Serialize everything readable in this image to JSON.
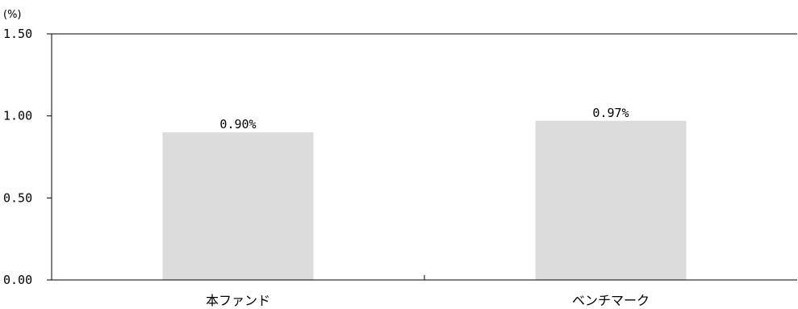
{
  "chart_data": {
    "type": "bar",
    "unit_label": "(%)",
    "categories": [
      "本ファンド",
      "ベンチマーク"
    ],
    "values": [
      0.9,
      0.97
    ],
    "data_labels": [
      "0.90%",
      "0.97%"
    ],
    "y_ticks": [
      "0.00",
      "0.50",
      "1.00",
      "1.50"
    ],
    "ylim": [
      0,
      1.5
    ],
    "grid": false,
    "legend": "none",
    "bar_color": "#dcdcdc",
    "axis_color": "#000000"
  }
}
